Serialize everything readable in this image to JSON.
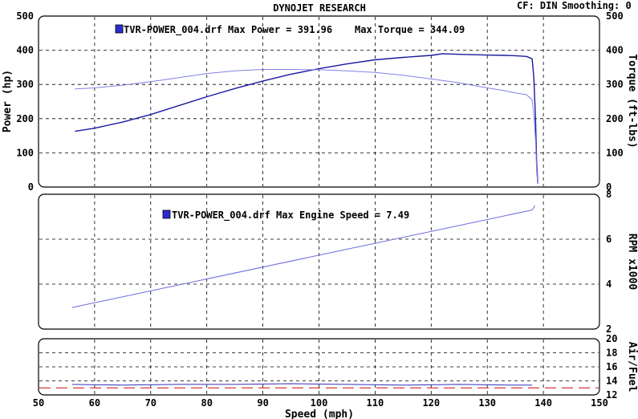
{
  "header": {
    "title": "DYNOJET RESEARCH",
    "cf_text": "CF: DIN",
    "smoothing_text": "Smoothing: 0"
  },
  "colors": {
    "power": "#1a1aa0",
    "torque": "#8080e6",
    "rpm": "#6a6ae0",
    "afr": "#3030c0",
    "afr_ref": "#d03a3a",
    "grid": "#000000",
    "legend_box": "#2b2bd0"
  },
  "chart_data": [
    {
      "id": "power_torque",
      "type": "line",
      "legend_text": "TVR-POWER_004.drf Max Power = 391.96",
      "legend_text2": "Max Torque = 344.09",
      "xlim": [
        50,
        150
      ],
      "ylim": [
        0,
        500
      ],
      "ylim_right": [
        0,
        500
      ],
      "ylabel": "Power (hp)",
      "ylabel_right": "Torque (ft-lbs)",
      "yticks": [
        0,
        100,
        200,
        300,
        400,
        500
      ],
      "yticks_right": [
        0,
        100,
        200,
        300,
        400,
        500
      ],
      "grid": true,
      "series": [
        {
          "key": "power",
          "x": [
            56.5,
            60,
            65,
            70,
            75,
            80,
            85,
            90,
            95,
            100,
            105,
            110,
            115,
            120,
            122,
            125,
            130,
            133,
            135,
            137,
            138,
            138.3,
            138.6,
            138.8,
            139
          ],
          "y": [
            163,
            172,
            190,
            212,
            238,
            264,
            288,
            310,
            330,
            346,
            360,
            372,
            379,
            385,
            390,
            388,
            386,
            385,
            384,
            382,
            375,
            320,
            200,
            70,
            10
          ]
        },
        {
          "key": "torque",
          "x": [
            56.5,
            60,
            65,
            70,
            75,
            80,
            85,
            90,
            95,
            100,
            105,
            110,
            115,
            120,
            125,
            130,
            133,
            135,
            137,
            138,
            138.3,
            138.6,
            138.8,
            139
          ],
          "y": [
            287,
            290,
            298,
            308,
            320,
            332,
            340,
            344,
            344,
            343,
            340,
            335,
            327,
            316,
            305,
            290,
            282,
            275,
            270,
            255,
            210,
            140,
            50,
            10
          ]
        }
      ]
    },
    {
      "id": "engine_speed",
      "type": "line",
      "legend_text": "TVR-POWER_004.drf Max Engine Speed = 7.49",
      "xlim": [
        50,
        150
      ],
      "ylim": [
        2,
        8
      ],
      "ylabel_right": "RPM x1000",
      "yticks_right": [
        2,
        4,
        6,
        8
      ],
      "grid": true,
      "series": [
        {
          "key": "rpm",
          "x": [
            56,
            138,
            138.5
          ],
          "y": [
            2.96,
            7.3,
            7.49
          ]
        }
      ]
    },
    {
      "id": "air_fuel",
      "type": "line",
      "xlim": [
        50,
        150
      ],
      "ylim": [
        12,
        20
      ],
      "ylabel_right": "Air/Fuel",
      "xlabel": "Speed (mph)",
      "yticks_right": [
        12,
        14,
        16,
        18,
        20
      ],
      "xticks": [
        50,
        60,
        70,
        80,
        90,
        100,
        110,
        120,
        130,
        140,
        150
      ],
      "reference_line": 13,
      "grid": true,
      "series": [
        {
          "key": "afr",
          "x": [
            56,
            65,
            75,
            85,
            95,
            105,
            115,
            125,
            135,
            138
          ],
          "y": [
            13.5,
            13.4,
            13.5,
            13.5,
            13.6,
            13.5,
            13.4,
            13.5,
            13.4,
            13.4
          ]
        }
      ]
    }
  ]
}
